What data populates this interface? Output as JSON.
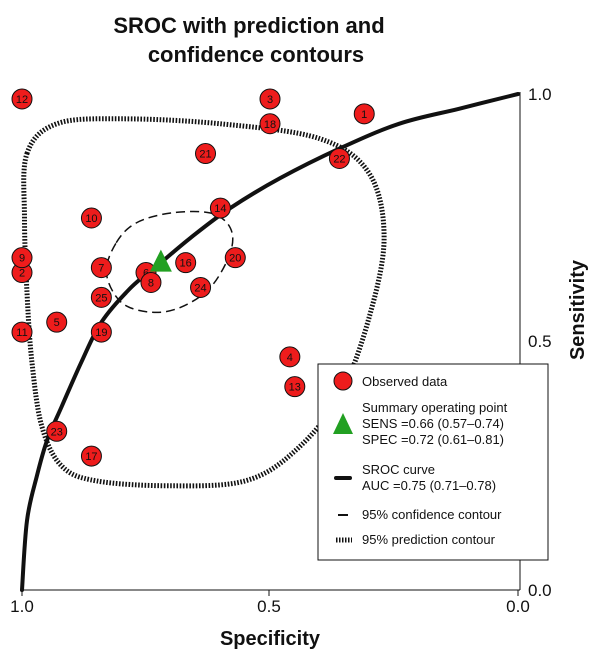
{
  "chart_data": {
    "type": "scatter",
    "title": [
      "SROC with prediction and",
      "confidence contours"
    ],
    "xlabel": "Specificity",
    "ylabel": "Sensitivity",
    "x_axis": {
      "reversed": true,
      "range": [
        1.0,
        0.0
      ],
      "ticks": [
        "1.0",
        "0.5",
        "0.0"
      ]
    },
    "y_axis": {
      "range": [
        0.0,
        1.0
      ],
      "ticks": [
        "0.0",
        "0.5",
        "1.0"
      ],
      "position": "right"
    },
    "grid": false,
    "observed_data": [
      {
        "label": "1",
        "spec": 0.31,
        "sens": 0.96
      },
      {
        "label": "2",
        "spec": 1.0,
        "sens": 0.64
      },
      {
        "label": "3",
        "spec": 0.5,
        "sens": 0.99
      },
      {
        "label": "4",
        "spec": 0.46,
        "sens": 0.47
      },
      {
        "label": "5",
        "spec": 0.93,
        "sens": 0.54
      },
      {
        "label": "6",
        "spec": 0.75,
        "sens": 0.64
      },
      {
        "label": "7",
        "spec": 0.84,
        "sens": 0.65
      },
      {
        "label": "8",
        "spec": 0.74,
        "sens": 0.62
      },
      {
        "label": "9",
        "spec": 1.0,
        "sens": 0.67
      },
      {
        "label": "10",
        "spec": 0.86,
        "sens": 0.75
      },
      {
        "label": "11",
        "spec": 1.0,
        "sens": 0.52
      },
      {
        "label": "12",
        "spec": 1.0,
        "sens": 0.99
      },
      {
        "label": "13",
        "spec": 0.45,
        "sens": 0.41
      },
      {
        "label": "14",
        "spec": 0.6,
        "sens": 0.77
      },
      {
        "label": "16",
        "spec": 0.67,
        "sens": 0.66
      },
      {
        "label": "17",
        "spec": 0.86,
        "sens": 0.27
      },
      {
        "label": "18",
        "spec": 0.5,
        "sens": 0.94
      },
      {
        "label": "19",
        "spec": 0.84,
        "sens": 0.52
      },
      {
        "label": "20",
        "spec": 0.57,
        "sens": 0.67
      },
      {
        "label": "21",
        "spec": 0.63,
        "sens": 0.88
      },
      {
        "label": "22",
        "spec": 0.36,
        "sens": 0.87
      },
      {
        "label": "23",
        "spec": 0.93,
        "sens": 0.32
      },
      {
        "label": "24",
        "spec": 0.64,
        "sens": 0.61
      },
      {
        "label": "25",
        "spec": 0.84,
        "sens": 0.59
      }
    ],
    "summary_point": {
      "spec": 0.72,
      "sens": 0.66
    },
    "sroc_curve": [
      {
        "spec": 1.0,
        "sens": 0.0
      },
      {
        "spec": 0.99,
        "sens": 0.14
      },
      {
        "spec": 0.97,
        "sens": 0.23
      },
      {
        "spec": 0.95,
        "sens": 0.3
      },
      {
        "spec": 0.92,
        "sens": 0.37
      },
      {
        "spec": 0.88,
        "sens": 0.46
      },
      {
        "spec": 0.84,
        "sens": 0.54
      },
      {
        "spec": 0.78,
        "sens": 0.61
      },
      {
        "spec": 0.72,
        "sens": 0.66
      },
      {
        "spec": 0.66,
        "sens": 0.71
      },
      {
        "spec": 0.58,
        "sens": 0.77
      },
      {
        "spec": 0.48,
        "sens": 0.83
      },
      {
        "spec": 0.36,
        "sens": 0.89
      },
      {
        "spec": 0.24,
        "sens": 0.94
      },
      {
        "spec": 0.12,
        "sens": 0.97
      },
      {
        "spec": 0.0,
        "sens": 1.0
      }
    ],
    "confidence_contour": [
      {
        "spec": 0.81,
        "sens": 0.7
      },
      {
        "spec": 0.77,
        "sens": 0.74
      },
      {
        "spec": 0.7,
        "sens": 0.76
      },
      {
        "spec": 0.62,
        "sens": 0.76
      },
      {
        "spec": 0.58,
        "sens": 0.73
      },
      {
        "spec": 0.58,
        "sens": 0.68
      },
      {
        "spec": 0.62,
        "sens": 0.61
      },
      {
        "spec": 0.68,
        "sens": 0.57
      },
      {
        "spec": 0.74,
        "sens": 0.56
      },
      {
        "spec": 0.8,
        "sens": 0.58
      },
      {
        "spec": 0.83,
        "sens": 0.64
      }
    ],
    "prediction_contour": [
      {
        "spec": 0.99,
        "sens": 0.88
      },
      {
        "spec": 0.93,
        "sens": 0.94
      },
      {
        "spec": 0.8,
        "sens": 0.95
      },
      {
        "spec": 0.6,
        "sens": 0.94
      },
      {
        "spec": 0.4,
        "sens": 0.91
      },
      {
        "spec": 0.3,
        "sens": 0.84
      },
      {
        "spec": 0.27,
        "sens": 0.71
      },
      {
        "spec": 0.3,
        "sens": 0.55
      },
      {
        "spec": 0.36,
        "sens": 0.39
      },
      {
        "spec": 0.45,
        "sens": 0.28
      },
      {
        "spec": 0.55,
        "sens": 0.22
      },
      {
        "spec": 0.7,
        "sens": 0.21
      },
      {
        "spec": 0.85,
        "sens": 0.22
      },
      {
        "spec": 0.92,
        "sens": 0.25
      },
      {
        "spec": 0.96,
        "sens": 0.33
      },
      {
        "spec": 0.98,
        "sens": 0.46
      },
      {
        "spec": 0.99,
        "sens": 0.6
      },
      {
        "spec": 0.995,
        "sens": 0.75
      }
    ],
    "legend": {
      "placement": "bottom-right",
      "observed": "Observed data",
      "summary_lines": [
        "Summary operating point",
        "SENS =0.66 (0.57–0.74)",
        "SPEC =0.72 (0.61–0.81)"
      ],
      "sroc_lines": [
        "SROC curve",
        "AUC =0.75 (0.71–0.78)"
      ],
      "confidence": "95% confidence contour",
      "prediction": "95% prediction contour"
    },
    "colors": {
      "point_fill": "#ee1c1c",
      "point_stroke": "#111111",
      "summary": "#22a022",
      "curve": "#111111"
    }
  }
}
